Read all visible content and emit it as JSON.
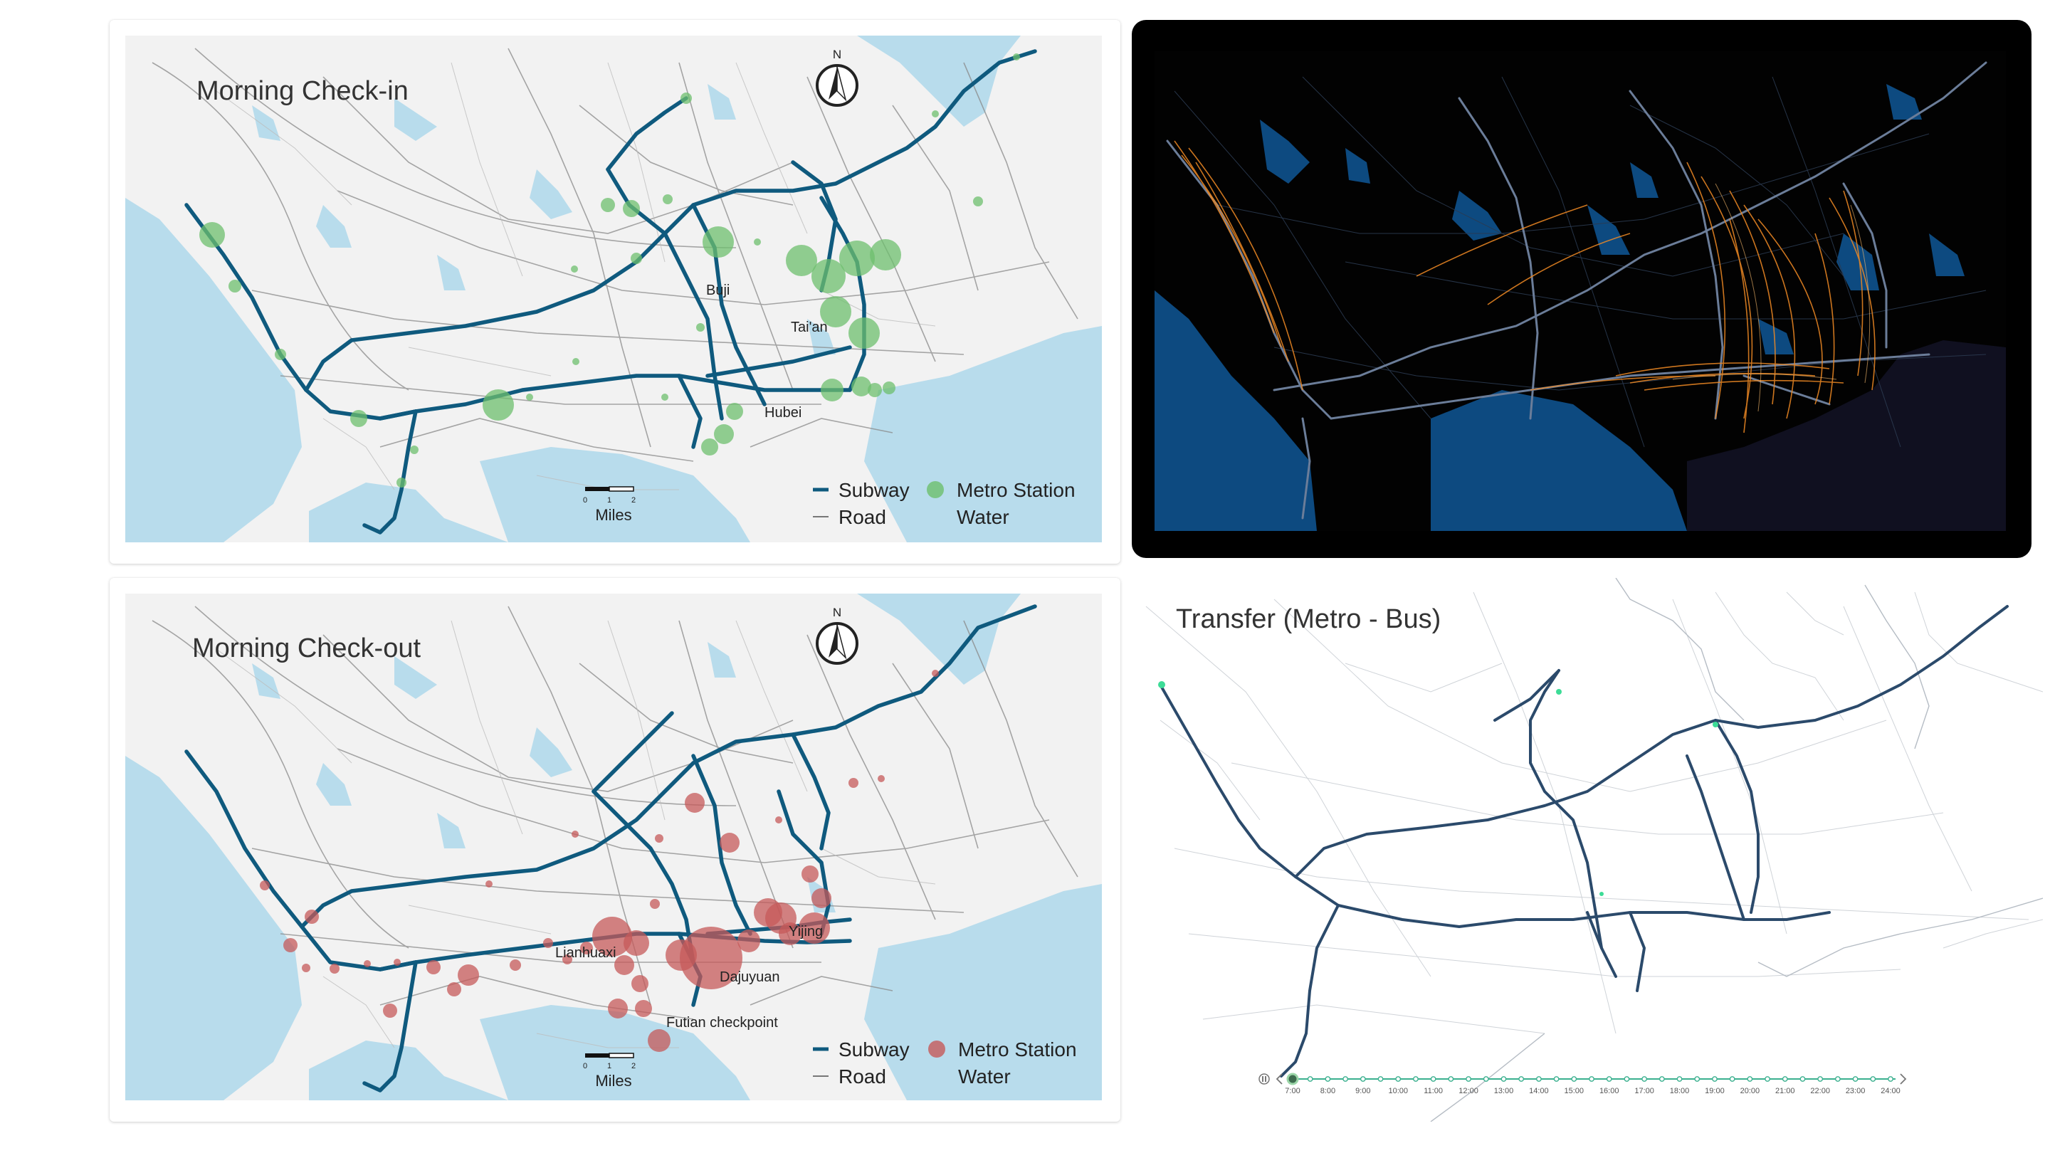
{
  "panels": {
    "checkin": {
      "title": "Morning Check-in",
      "station_color": "#6dbf6d",
      "labels": [
        "Buji",
        "Tai'an",
        "Hubei"
      ]
    },
    "checkout": {
      "title": "Morning Check-out",
      "station_color": "#c55a5a",
      "labels": [
        "Lianhuaxi",
        "Dajuyuan",
        "Yijing",
        "Futian checkpoint"
      ]
    },
    "flow": {
      "background": "#000000",
      "water_color": "#0d4a80",
      "flow_color": "#f08a24"
    },
    "transfer": {
      "title": "Transfer (Metro - Bus)",
      "line_color": "#2b4a6b",
      "node_color": "#3ddc97"
    }
  },
  "compass": {
    "letter": "N"
  },
  "scale_bar": {
    "ticks": [
      "0",
      "1",
      "2"
    ],
    "unit": "Miles"
  },
  "legend": {
    "subway": "Subway",
    "road": "Road",
    "station": "Metro Station",
    "water": "Water",
    "subway_color": "#0f5a7e",
    "water_color": "#b8dcec"
  },
  "timeline": {
    "times": [
      "7:00",
      "8:00",
      "9:00",
      "10:00",
      "11:00",
      "12:00",
      "13:00",
      "14:00",
      "15:00",
      "16:00",
      "17:00",
      "18:00",
      "19:00",
      "20:00",
      "21:00",
      "22:00",
      "23:00",
      "24:00"
    ],
    "current": "7:00",
    "play_icon": "pause-icon",
    "prev_icon": "chevron-left-icon",
    "next_icon": "chevron-right-icon"
  }
}
